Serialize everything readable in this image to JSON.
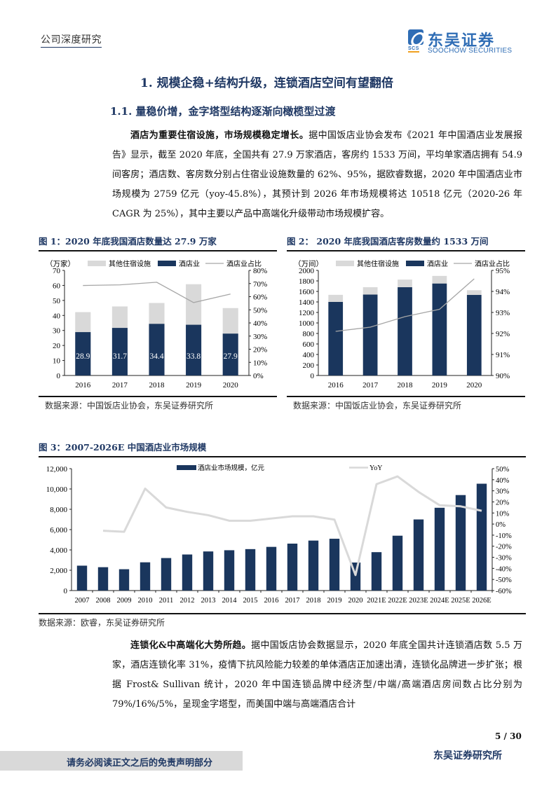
{
  "header": {
    "left_label": "公司深度研究",
    "logo_cn": "东吴证券",
    "logo_en": "SOOCHOW SECURITIES",
    "logo_abbr": "SCS"
  },
  "section": {
    "h1": "1.  规模企稳+结构升级，连锁酒店空间有望翻倍",
    "h2": "1.1.  量稳价增，金字塔型结构逐渐向橄榄型过渡"
  },
  "para1": {
    "lead": "酒店为重要住宿设施，市场规模稳定增长。",
    "body": "据中国饭店业协会发布《2021 年中国酒店业发展报告》显示，截至 2020 年底，全国共有 27.9 万家酒店，客房约 1533 万间，平均单家酒店拥有 54.9 间客房；酒店数、客房数分别占住宿业设施数量的 62%、95%，据欧睿数据，2020 年中国酒店业市场规模为 2759 亿元（yoy-45.8%），其预计到 2026 年市场规模将达 10518 亿元（2020-26 年 CAGR 为 25%），其中主要以产品中高端化升级带动市场规模扩容。"
  },
  "figures": {
    "fig1": {
      "title": "图 1：2020 年底我国酒店数量达 27.9 万家",
      "source": "数据来源：中国饭店业协会，东吴证券研究所"
    },
    "fig2": {
      "title": "图 2：  2020 年底我国酒店客房数量约 1533 万间",
      "source": "数据来源：中国饭店业协会，东吴证券研究所"
    },
    "fig3": {
      "title": "图 3：2007-2026E 中国酒店业市场规模",
      "source": "数据来源：欧睿，东吴证券研究所"
    }
  },
  "para2": {
    "lead": "连锁化&中高端化大势所趋。",
    "body": "据中国饭店协会数据显示，2020 年底全国共计连锁酒店数 5.5 万家，酒店连锁化率 31%，疫情下抗风险能力较差的单体酒店正加速出清，连锁化品牌进一步扩张；根据 Frost& Sullivan 统计，2020 年中国连锁品牌中经济型/中端/高端酒店房间数占比分别为 79%/16%/5%，呈现金字塔型，而美国中端与高端酒店合计"
  },
  "footer": {
    "disclaimer": "请务必阅读正文之后的免责声明部分",
    "page": "5 / 30",
    "org": "东吴证券研究所"
  },
  "colors": {
    "navy": "#1a365d",
    "light_gray": "#d9d9d9",
    "line_gray": "#a6a6a6",
    "yoy_line": "#d9d9d9",
    "heading": "#1f3864"
  },
  "chart_data": [
    {
      "type": "bar",
      "stacked": true,
      "title": "图 1：2020 年底我国酒店数量达 27.9 万家",
      "unit_label": "（万家）",
      "categories": [
        "2016",
        "2017",
        "2018",
        "2019",
        "2020"
      ],
      "series": [
        {
          "name": "酒店业",
          "values": [
            28.9,
            31.7,
            34.4,
            33.8,
            27.9
          ],
          "color": "#1a365d",
          "labels": [
            "28.9",
            "31.7",
            "34.4",
            "33.8",
            "27.9"
          ]
        },
        {
          "name": "其他住宿设施",
          "values": [
            13.3,
            14.3,
            13.9,
            27.0,
            17.0
          ],
          "color": "#d9d9d9"
        },
        {
          "name": "酒店业占比",
          "type": "line",
          "axis": "right",
          "values": [
            68.5,
            69.0,
            71.0,
            55.5,
            62.0
          ],
          "color": "#a6a6a6"
        }
      ],
      "ylim": [
        0,
        70
      ],
      "yticks": [
        0,
        10,
        20,
        30,
        40,
        50,
        60,
        70
      ],
      "y2lim": [
        0,
        80
      ],
      "y2ticks": [
        "0%",
        "10%",
        "20%",
        "30%",
        "40%",
        "50%",
        "60%",
        "70%",
        "80%"
      ],
      "legend_position": "top"
    },
    {
      "type": "bar",
      "stacked": true,
      "title": "图 2：2020 年底我国酒店客房数量约 1533 万间",
      "unit_label": "（万间）",
      "categories": [
        "2016",
        "2017",
        "2018",
        "2019",
        "2020"
      ],
      "series": [
        {
          "name": "酒店业",
          "values": [
            1400,
            1540,
            1680,
            1750,
            1533
          ],
          "color": "#1a365d"
        },
        {
          "name": "其他住宿设施",
          "values": [
            135,
            140,
            145,
            145,
            90
          ],
          "color": "#d9d9d9"
        },
        {
          "name": "酒店业占比",
          "type": "line",
          "axis": "right",
          "values": [
            92.1,
            92.3,
            92.8,
            93.15,
            94.6
          ],
          "color": "#a6a6a6"
        }
      ],
      "ylim": [
        0,
        2000
      ],
      "yticks": [
        0,
        200,
        400,
        600,
        800,
        1000,
        1200,
        1400,
        1600,
        1800,
        2000
      ],
      "y2lim": [
        90,
        95
      ],
      "y2ticks": [
        "90%",
        "91%",
        "92%",
        "93%",
        "94%",
        "95%"
      ],
      "legend_position": "top"
    },
    {
      "type": "bar",
      "title": "图 3：2007-2026E 中国酒店业市场规模",
      "categories": [
        "2007",
        "2008",
        "2009",
        "2010",
        "2011",
        "2012",
        "2013",
        "2014",
        "2015",
        "2016",
        "2017",
        "2018",
        "2019",
        "2020",
        "2021E",
        "2022E",
        "2023E",
        "2024E",
        "2025E",
        "2026E"
      ],
      "series": [
        {
          "name": "酒店业市场规模，亿元",
          "values": [
            2450,
            2300,
            2100,
            2780,
            3200,
            3550,
            3850,
            3970,
            4080,
            4300,
            4620,
            4920,
            5100,
            2759,
            3780,
            5400,
            7000,
            8150,
            9400,
            10518
          ],
          "color": "#1a365d"
        },
        {
          "name": "YoY",
          "type": "line",
          "axis": "right",
          "values": [
            null,
            -6,
            -7,
            32,
            15,
            11,
            8,
            3,
            3,
            5,
            7,
            7,
            4,
            -46,
            36,
            43,
            29,
            17,
            16,
            12
          ],
          "color": "#d9d9d9"
        }
      ],
      "ylim": [
        0,
        12000
      ],
      "yticks": [
        "0",
        "2,000",
        "4,000",
        "6,000",
        "8,000",
        "10,000",
        "12,000"
      ],
      "y2lim": [
        -60,
        50
      ],
      "y2ticks": [
        "-60%",
        "-50%",
        "-40%",
        "-30%",
        "-20%",
        "-10%",
        "0%",
        "10%",
        "20%",
        "30%",
        "40%",
        "50%"
      ],
      "legend_position": "top"
    }
  ]
}
